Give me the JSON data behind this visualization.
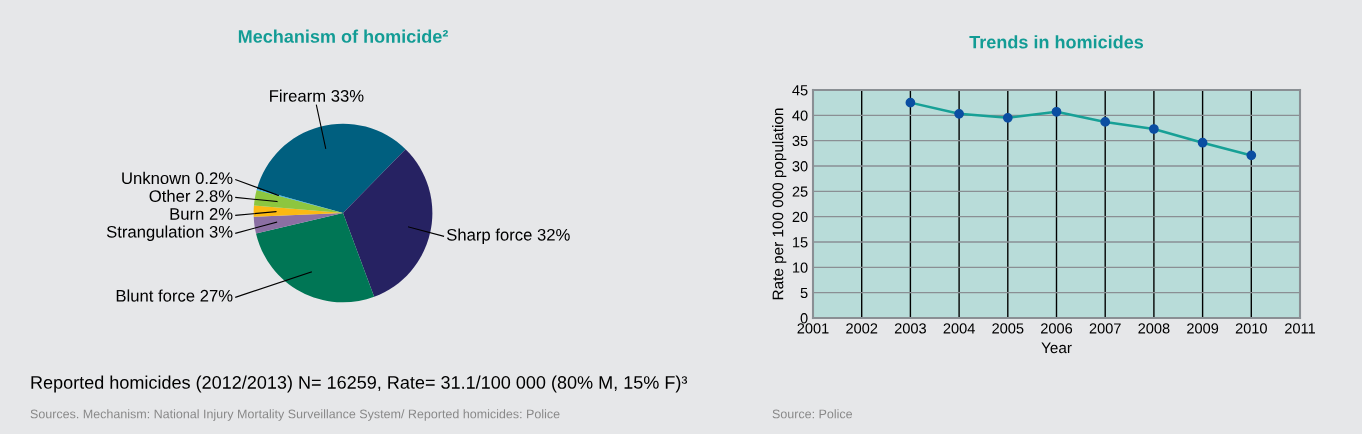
{
  "chart_data": [
    {
      "type": "pie",
      "title": "Mechanism of homicide²",
      "categories": [
        "Firearm 33%",
        "Sharp force 32%",
        "Blunt force 27%",
        "Strangulation 3%",
        "Burn 2%",
        "Other 2.8%",
        "Unknown 0.2%"
      ],
      "values": [
        33,
        32,
        27,
        3,
        2,
        2.8,
        0.2
      ],
      "colors": [
        "#005f7f",
        "#262262",
        "#007655",
        "#8b6fa3",
        "#fbb913",
        "#8dc63f",
        "#29a9e0"
      ],
      "annotations": [
        "Reported homicides (2012/2013) N= 16259, Rate= 31.1/100 000 (80% M, 15% F)³",
        "Sources. Mechanism: National Injury Mortality Surveillance System/ Reported homicides: Police"
      ]
    },
    {
      "type": "line",
      "title": "Trends in homicides",
      "xlabel": "Year",
      "ylabel": "Rate per 100 000 population",
      "x": [
        2003,
        2004,
        2005,
        2006,
        2007,
        2008,
        2009,
        2010
      ],
      "series": [
        {
          "color": "#17a096",
          "values": [
            42.5,
            40.3,
            39.5,
            40.7,
            38.7,
            37.3,
            34.6,
            32.1
          ]
        }
      ],
      "marker": "circle",
      "grid": true,
      "xlim": [
        2001,
        2011
      ],
      "xticks": [
        2001,
        2002,
        2003,
        2004,
        2005,
        2006,
        2007,
        2008,
        2009,
        2010,
        2011
      ],
      "ylim": [
        0,
        45
      ],
      "yticks": [
        0,
        5,
        10,
        15,
        20,
        25,
        30,
        35,
        40,
        45
      ],
      "annotations": [
        "Source: Police"
      ]
    }
  ]
}
